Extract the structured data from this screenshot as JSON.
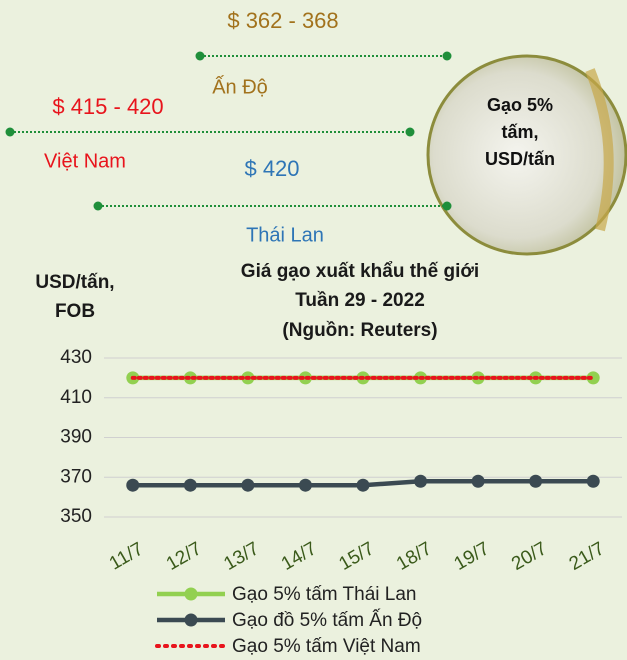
{
  "callouts": [
    {
      "price": "$ 362 - 368",
      "country": "Ấn Độ",
      "color": "#a2721c"
    },
    {
      "price": "$ 415 - 420",
      "country": "Việt Nam",
      "color": "#e8141c"
    },
    {
      "price": "$ 420",
      "country": "Thái Lan",
      "color": "#2e75b6"
    }
  ],
  "circle_label": "Gạo 5% tấm, USD/tấn",
  "chart_data": {
    "type": "line",
    "title": "Giá gạo xuất khẩu thế giới",
    "subtitle": "Tuần 29 - 2022",
    "source": "(Nguồn: Reuters)",
    "ylabel": "USD/tấn, FOB",
    "categories": [
      "11/7",
      "12/7",
      "13/7",
      "14/7",
      "15/7",
      "18/7",
      "19/7",
      "20/7",
      "21/7"
    ],
    "series": [
      {
        "name": "Gạo 5% tấm Thái Lan",
        "color": "#92d050",
        "marker": true,
        "dash": "solid",
        "values": [
          420,
          420,
          420,
          420,
          420,
          420,
          420,
          420,
          420
        ]
      },
      {
        "name": "Gạo đồ 5% tấm Ấn Độ",
        "color": "#3b4a52",
        "marker": true,
        "dash": "solid",
        "values": [
          366,
          366,
          366,
          366,
          366,
          368,
          368,
          368,
          368
        ]
      },
      {
        "name": "Gạo 5% tấm Việt Nam",
        "color": "#e8141c",
        "marker": false,
        "dash": "dotted",
        "values": [
          420,
          420,
          420,
          420,
          420,
          420,
          420,
          420,
          420
        ]
      }
    ],
    "ylim": [
      350,
      430
    ],
    "yticks": [
      350,
      370,
      390,
      410,
      430
    ],
    "grid": true
  }
}
